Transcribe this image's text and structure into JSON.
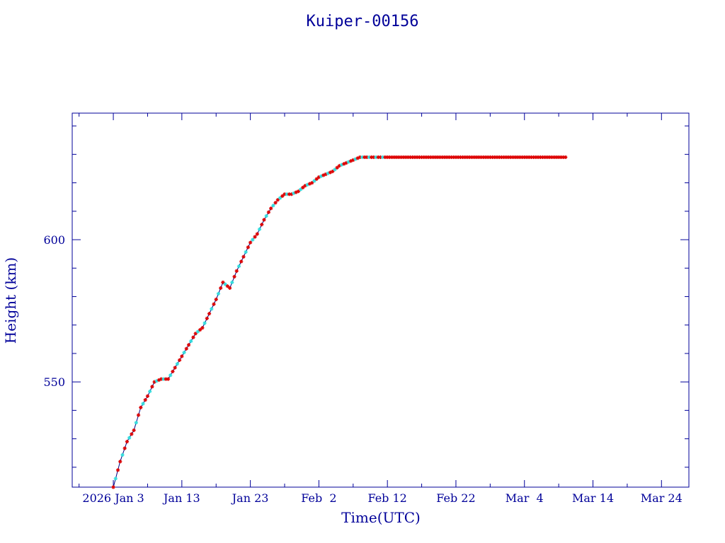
{
  "chart_data": {
    "type": "scatter",
    "title": "Kuiper-00156",
    "xlabel": "Time(UTC)",
    "ylabel": "Height (km)",
    "x_tick_labels": [
      "2026 Jan 3",
      "Jan 13",
      "Jan 23",
      "Feb  2",
      "Feb 12",
      "Feb 22",
      "Mar  4",
      "Mar 14",
      "Mar 24"
    ],
    "x_tick_dates": [
      "2026-01-03",
      "2026-01-13",
      "2026-01-23",
      "2026-02-02",
      "2026-02-12",
      "2026-02-22",
      "2026-03-04",
      "2026-03-14",
      "2026-03-24"
    ],
    "xlim": [
      "2025-12-28",
      "2026-03-28"
    ],
    "y_ticks": [
      550,
      600
    ],
    "ylim": [
      513,
      644.5
    ],
    "grid": false,
    "colors": {
      "axis": "#000099",
      "line": "#000080",
      "marker_primary": "#dd0000",
      "marker_secondary": "#33dddd"
    },
    "trajectory": {
      "x": [
        "2026-01-03",
        "2026-01-04",
        "2026-01-05",
        "2026-01-06",
        "2026-01-07",
        "2026-01-08",
        "2026-01-09",
        "2026-01-10",
        "2026-01-11",
        "2026-01-12",
        "2026-01-13",
        "2026-01-14",
        "2026-01-15",
        "2026-01-16",
        "2026-01-17",
        "2026-01-18",
        "2026-01-19",
        "2026-01-20",
        "2026-01-21",
        "2026-01-22",
        "2026-01-23",
        "2026-01-24",
        "2026-01-25",
        "2026-01-26",
        "2026-01-27",
        "2026-01-28",
        "2026-01-29",
        "2026-01-30",
        "2026-01-31",
        "2026-02-01",
        "2026-02-02",
        "2026-02-03",
        "2026-02-04",
        "2026-02-05",
        "2026-02-06",
        "2026-02-07",
        "2026-02-08",
        "2026-02-09",
        "2026-02-10",
        "2026-02-11",
        "2026-02-16",
        "2026-02-21",
        "2026-02-26",
        "2026-03-03",
        "2026-03-08",
        "2026-03-10"
      ],
      "y": [
        513,
        522,
        529,
        533,
        541,
        545,
        550,
        551,
        551,
        555,
        559,
        563,
        567,
        569,
        574,
        579,
        585,
        583,
        589,
        594,
        599,
        602,
        607,
        611,
        614,
        616,
        616,
        617,
        619,
        620,
        622,
        623,
        624,
        626,
        627,
        628,
        629,
        629,
        629,
        629,
        629,
        629,
        629,
        629,
        629,
        629
      ]
    }
  }
}
